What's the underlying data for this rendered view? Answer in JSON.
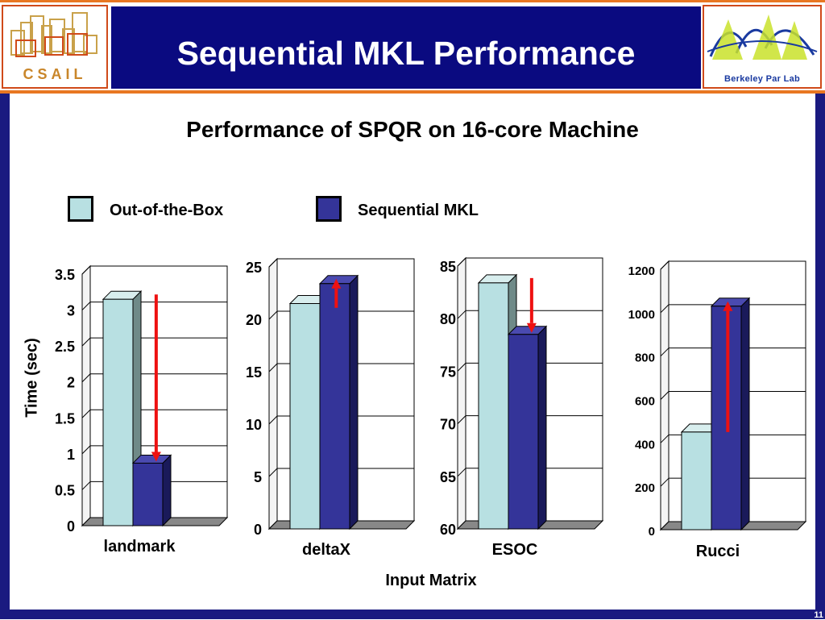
{
  "header": {
    "title": "Sequential MKL Performance",
    "left_logo_text": "CSAIL",
    "right_logo_text": "Berkeley Par Lab",
    "page_number": "11"
  },
  "axis": {
    "ylabel": "Time (sec)",
    "xlabel": "Input Matrix"
  },
  "chart_data": {
    "type": "bar",
    "title": "Performance of SPQR on 16-core Machine",
    "xlabel": "Input Matrix",
    "ylabel": "Time (sec)",
    "legend": [
      "Out-of-the-Box",
      "Sequential MKL"
    ],
    "legend_placement": "top",
    "grid": true,
    "colors": {
      "Out-of-the-Box": "#b8e0e2",
      "Sequential MKL": "#343499",
      "arrow": "#ee1111"
    },
    "panels": [
      {
        "category": "landmark",
        "ylim": [
          0,
          3.5
        ],
        "ticks": [
          "0",
          "0.5",
          "1",
          "1.5",
          "2",
          "2.5",
          "3",
          "3.5"
        ],
        "series": [
          {
            "name": "Out-of-the-Box",
            "value": 3.15
          },
          {
            "name": "Sequential MKL",
            "value": 0.87
          }
        ],
        "arrow": "down"
      },
      {
        "category": "deltaX",
        "ylim": [
          0,
          25
        ],
        "ticks": [
          "0",
          "5",
          "10",
          "15",
          "20",
          "25"
        ],
        "series": [
          {
            "name": "Out-of-the-Box",
            "value": 21.5
          },
          {
            "name": "Sequential MKL",
            "value": 23.4
          }
        ],
        "arrow": "up"
      },
      {
        "category": "ESOC",
        "ylim": [
          60,
          85
        ],
        "ticks": [
          "60",
          "65",
          "70",
          "75",
          "80",
          "85"
        ],
        "series": [
          {
            "name": "Out-of-the-Box",
            "value": 83.4
          },
          {
            "name": "Sequential MKL",
            "value": 78.5
          }
        ],
        "arrow": "down"
      },
      {
        "category": "Rucci",
        "ylim": [
          0,
          1200
        ],
        "ticks": [
          "0",
          "200",
          "400",
          "600",
          "800",
          "1000",
          "1200"
        ],
        "series": [
          {
            "name": "Out-of-the-Box",
            "value": 450
          },
          {
            "name": "Sequential MKL",
            "value": 1030
          }
        ],
        "arrow": "up"
      }
    ]
  }
}
